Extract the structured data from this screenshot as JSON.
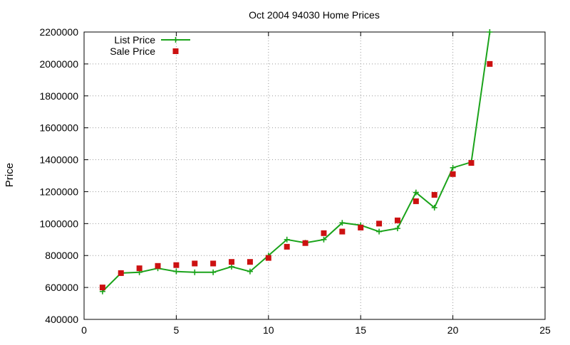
{
  "chart_data": {
    "type": "line",
    "title": "Oct 2004 94030 Home Prices",
    "xlabel": "",
    "ylabel": "Price",
    "xlim": [
      0,
      25
    ],
    "ylim": [
      400000,
      2200000
    ],
    "xticks": [
      "0",
      "5",
      "10",
      "15",
      "20",
      "25"
    ],
    "yticks": [
      "400000",
      "600000",
      "800000",
      "1000000",
      "1200000",
      "1400000",
      "1600000",
      "1800000",
      "2000000",
      "2200000"
    ],
    "grid": true,
    "legend_position": "top-left",
    "series": [
      {
        "name": "List Price",
        "style": "line+cross",
        "color": "#1aa31a",
        "x": [
          1,
          2,
          3,
          4,
          5,
          6,
          7,
          8,
          9,
          10,
          11,
          12,
          13,
          14,
          15,
          16,
          17,
          18,
          19,
          20,
          21,
          22
        ],
        "y": [
          575000,
          690000,
          695000,
          720000,
          700000,
          695000,
          695000,
          730000,
          700000,
          800000,
          900000,
          880000,
          900000,
          1005000,
          990000,
          950000,
          970000,
          1195000,
          1100000,
          1350000,
          1385000,
          2200000
        ]
      },
      {
        "name": "Sale Price",
        "style": "square",
        "color": "#cc1111",
        "x": [
          1,
          2,
          3,
          4,
          5,
          6,
          7,
          8,
          9,
          10,
          11,
          12,
          13,
          14,
          15,
          16,
          17,
          18,
          19,
          20,
          21,
          22
        ],
        "y": [
          600000,
          690000,
          720000,
          735000,
          740000,
          750000,
          750000,
          760000,
          760000,
          785000,
          855000,
          878000,
          940000,
          950000,
          975000,
          1000000,
          1020000,
          1140000,
          1180000,
          1310000,
          1380000,
          2000000
        ]
      }
    ]
  }
}
